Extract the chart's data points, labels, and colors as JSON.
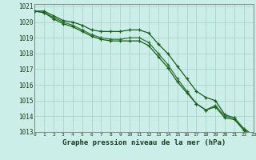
{
  "title": "Graphe pression niveau de la mer (hPa)",
  "background_color": "#cceee8",
  "grid_color": "#aad4cc",
  "line_color_dark": "#1a5c1a",
  "line_color_mid": "#2d7a2d",
  "x_values": [
    0,
    1,
    2,
    3,
    4,
    5,
    6,
    7,
    8,
    9,
    10,
    11,
    12,
    13,
    14,
    15,
    16,
    17,
    18,
    19,
    20,
    21,
    22,
    23
  ],
  "series1": [
    1020.7,
    1020.7,
    1020.4,
    1020.1,
    1020.0,
    1019.8,
    1019.5,
    1019.4,
    1019.4,
    1019.4,
    1019.5,
    1019.5,
    1019.3,
    1018.6,
    1018.0,
    1017.2,
    1016.4,
    1015.6,
    1015.2,
    1015.0,
    1014.1,
    1013.9,
    1013.2,
    1012.8
  ],
  "series2": [
    1020.7,
    1020.6,
    1020.3,
    1020.0,
    1019.8,
    1019.5,
    1019.2,
    1019.0,
    1018.9,
    1018.9,
    1019.0,
    1019.0,
    1018.7,
    1018.0,
    1017.3,
    1016.4,
    1015.6,
    1014.8,
    1014.4,
    1014.7,
    1014.0,
    1013.9,
    1013.2,
    1012.8
  ],
  "series3": [
    1020.7,
    1020.6,
    1020.2,
    1019.9,
    1019.7,
    1019.4,
    1019.1,
    1018.9,
    1018.8,
    1018.8,
    1018.8,
    1018.8,
    1018.5,
    1017.8,
    1017.1,
    1016.2,
    1015.5,
    1014.8,
    1014.4,
    1014.6,
    1013.9,
    1013.8,
    1013.1,
    1012.75
  ],
  "ylim_min": 1013,
  "ylim_max": 1021,
  "title_fontsize": 6.5
}
